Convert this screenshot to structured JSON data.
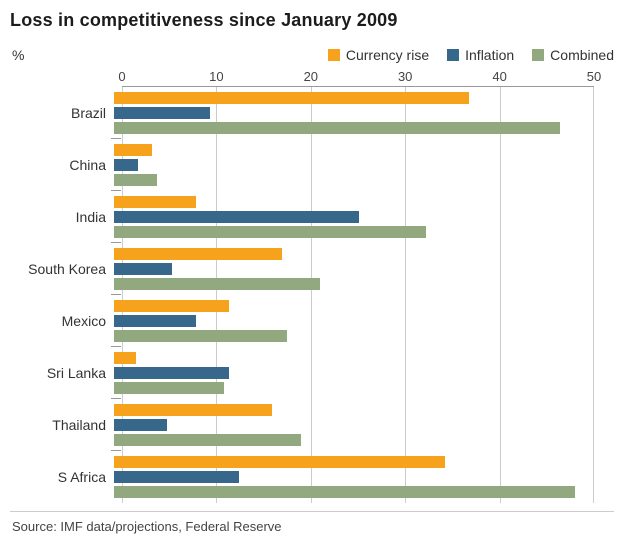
{
  "title": "Loss in competitiveness since January 2009",
  "axis_percent_label": "%",
  "source": "Source: IMF data/projections, Federal Reserve",
  "colors": {
    "currency_rise": "#f6a21d",
    "inflation": "#38678c",
    "combined": "#92a97f",
    "gridline": "#cccccc",
    "axis_line": "#999999"
  },
  "chart_data": {
    "type": "bar",
    "orientation": "horizontal",
    "title": "Loss in competitiveness since January 2009",
    "xlabel": "%",
    "xlim": [
      0,
      50
    ],
    "x_ticks": [
      0,
      10,
      20,
      30,
      40,
      50
    ],
    "grid": "vertical",
    "legend_position": "top-right",
    "categories": [
      "Brazil",
      "China",
      "India",
      "South Korea",
      "Mexico",
      "Sri Lanka",
      "Thailand",
      "S Africa"
    ],
    "series": [
      {
        "name": "Currency rise",
        "key": "currency_rise",
        "values": [
          37,
          4,
          8.5,
          17.5,
          12,
          2.3,
          16.5,
          34.5
        ]
      },
      {
        "name": "Inflation",
        "key": "inflation",
        "values": [
          10,
          2.5,
          25.5,
          6,
          8.5,
          12,
          5.5,
          13
        ]
      },
      {
        "name": "Combined",
        "key": "combined",
        "values": [
          46.5,
          4.5,
          32.5,
          21.5,
          18,
          11.5,
          19.5,
          48
        ]
      }
    ],
    "source": "Source: IMF data/projections, Federal Reserve"
  }
}
